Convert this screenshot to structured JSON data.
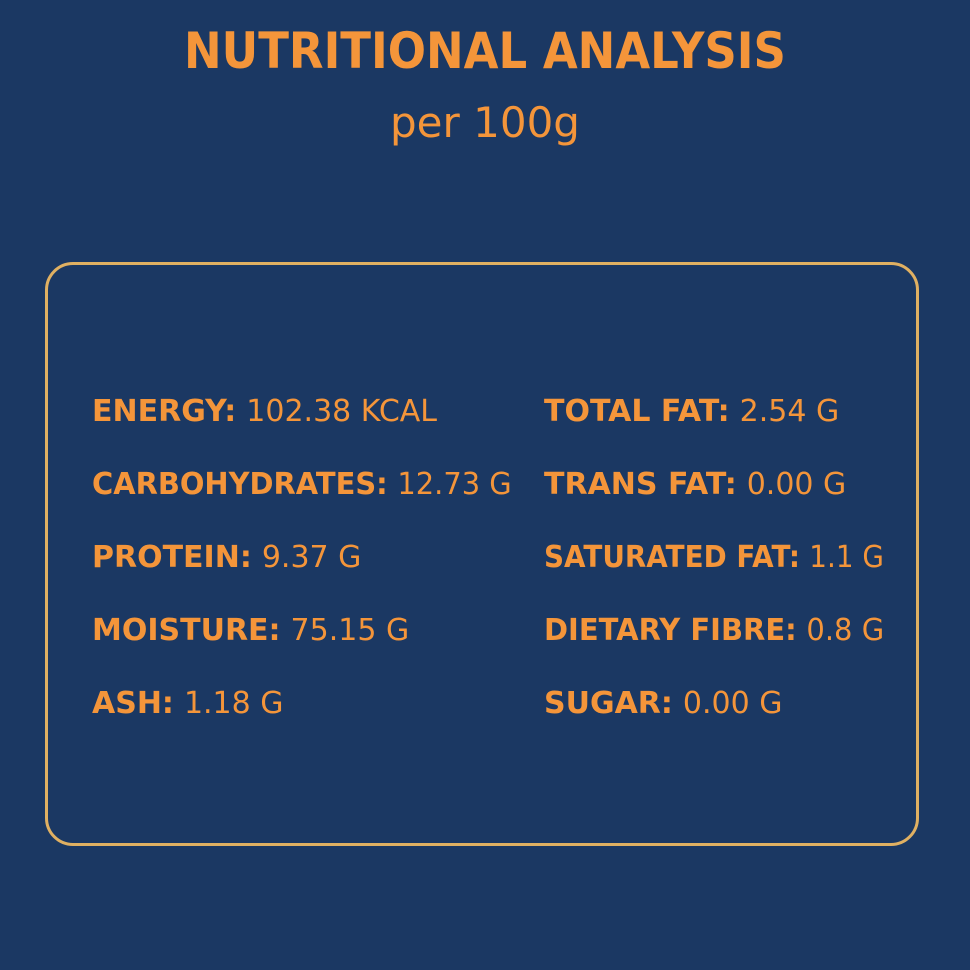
{
  "header": {
    "title": "NUTRITIONAL ANALYSIS",
    "subtitle": "per 100g"
  },
  "items": [
    {
      "label": "ENERGY:",
      "value": "102.38 KCAL"
    },
    {
      "label": "CARBOHYDRATES:",
      "value": "12.73 G"
    },
    {
      "label": "PROTEIN:",
      "value": "9.37 G"
    },
    {
      "label": "MOISTURE:",
      "value": "75.15 G"
    },
    {
      "label": "ASH:",
      "value": "1.18 G"
    },
    {
      "label": "TOTAL FAT:",
      "value": "2.54 G"
    },
    {
      "label": "TRANS FAT:",
      "value": "0.00 G"
    },
    {
      "label": "SATURATED FAT:",
      "value": "1.1 G"
    },
    {
      "label": "DIETARY FIBRE:",
      "value": "0.8 G"
    },
    {
      "label": "SUGAR:",
      "value": "0.00 G"
    }
  ]
}
